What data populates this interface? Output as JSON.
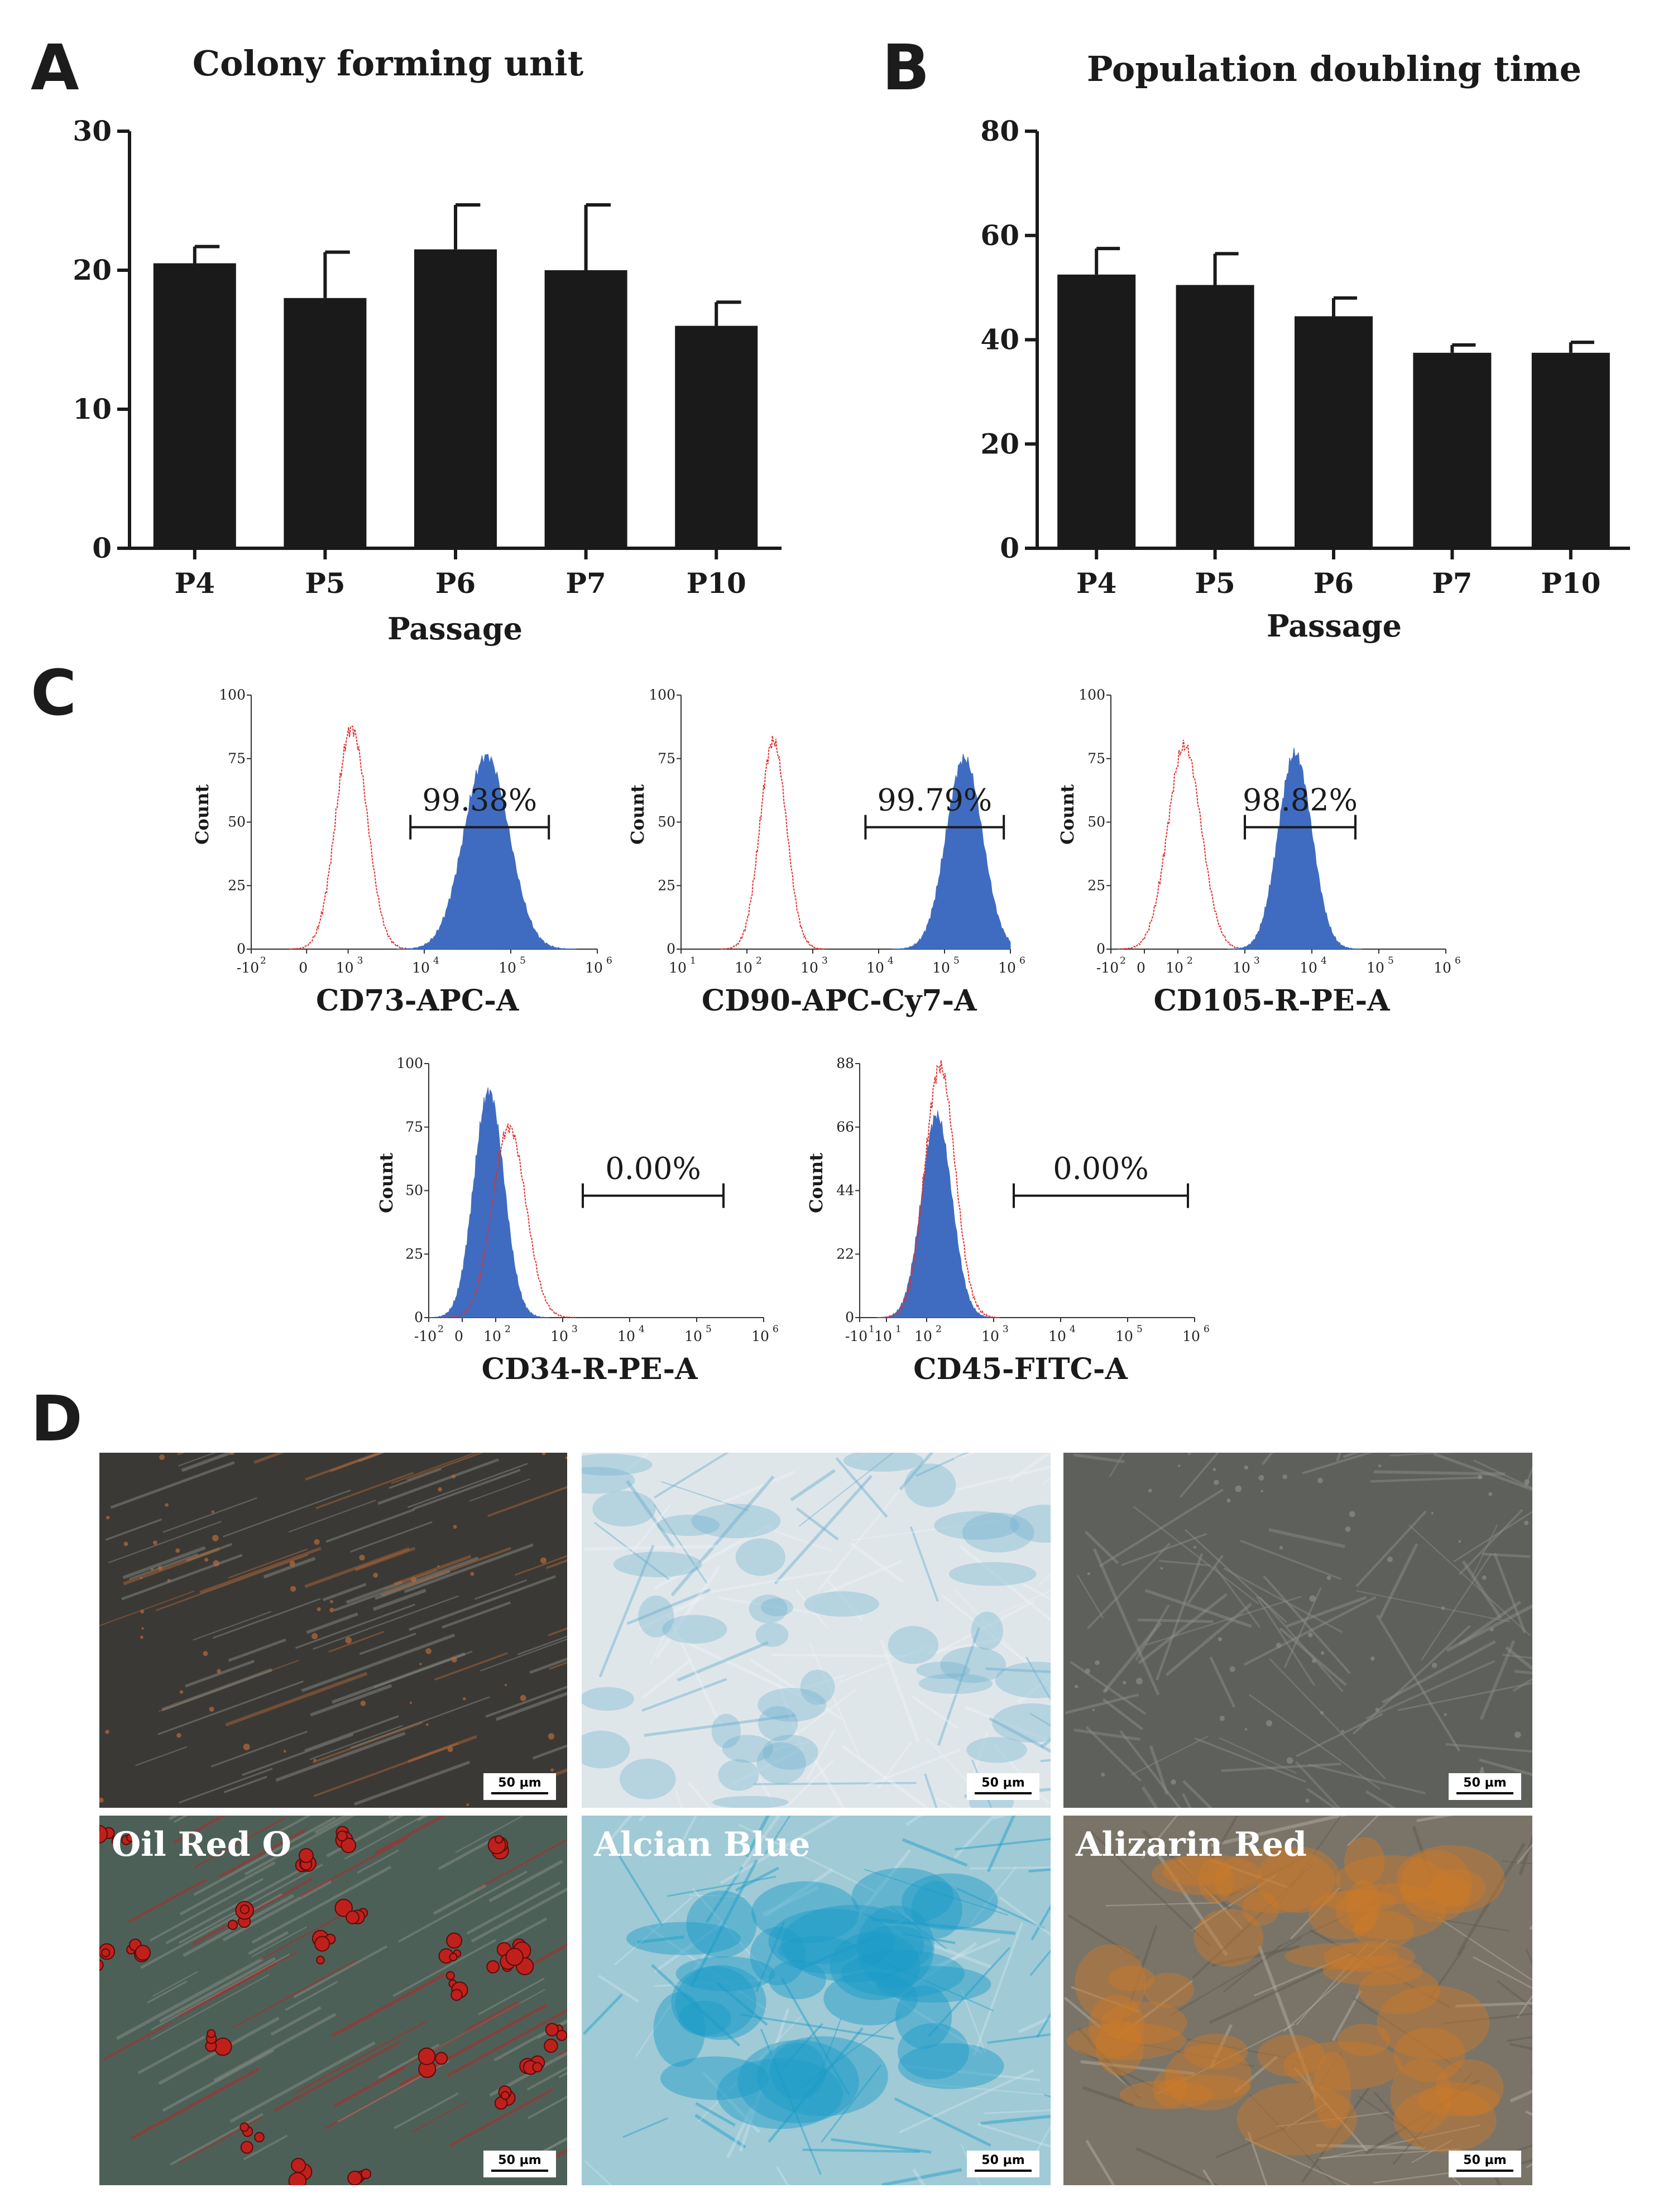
{
  "panel_labels": [
    "A",
    "B",
    "C",
    "D"
  ],
  "chart_data": [
    {
      "type": "bar",
      "title": "Colony forming unit",
      "xlabel": "Passage",
      "ylabel": "",
      "categories": [
        "P4",
        "P5",
        "P6",
        "P7",
        "P10"
      ],
      "values": [
        20.5,
        18.0,
        21.5,
        20.0,
        16.0
      ],
      "errors": [
        1.2,
        3.3,
        3.2,
        4.7,
        1.7
      ],
      "ylim": [
        0,
        30
      ],
      "yticks": [
        "0",
        "10",
        "20",
        "30"
      ],
      "bar_color": "#1a1a1a"
    },
    {
      "type": "bar",
      "title": "Population doubling time",
      "xlabel": "Passage",
      "ylabel": "",
      "categories": [
        "P4",
        "P5",
        "P6",
        "P7",
        "P10"
      ],
      "values": [
        52.5,
        50.5,
        44.5,
        37.5,
        37.5
      ],
      "errors": [
        5.0,
        6.0,
        3.5,
        1.5,
        2.0
      ],
      "ylim": [
        0,
        80
      ],
      "yticks": [
        "0",
        "20",
        "40",
        "60",
        "80"
      ],
      "bar_color": "#1a1a1a"
    }
  ],
  "flow_histograms": [
    {
      "marker": "CD73-APC-A",
      "percent": "99.38%",
      "ylabel": "Count",
      "yticks": [
        "0",
        "25",
        "50",
        "75",
        "100"
      ],
      "ymax": 100,
      "xticks": [
        [
          "-10",
          "2"
        ],
        [
          "0",
          ""
        ],
        [
          "10",
          "3"
        ],
        [
          "10",
          "4"
        ],
        [
          "10",
          "5"
        ],
        [
          "10",
          "6"
        ]
      ],
      "xtick_pos": [
        0.0,
        0.16,
        0.28,
        0.5,
        0.75,
        1.0
      ],
      "red_peak": {
        "center": 0.29,
        "width": 0.045,
        "height": 87
      },
      "blue_peak": {
        "center": 0.68,
        "width": 0.065,
        "height": 76
      },
      "gate": [
        0.46,
        0.86
      ],
      "blue_overlaps": false
    },
    {
      "marker": "CD90-APC-Cy7-A",
      "percent": "99.79%",
      "ylabel": "Count",
      "yticks": [
        "0",
        "25",
        "50",
        "75",
        "100"
      ],
      "ymax": 100,
      "xticks": [
        [
          "10",
          "1"
        ],
        [
          "10",
          "2"
        ],
        [
          "10",
          "3"
        ],
        [
          "10",
          "4"
        ],
        [
          "10",
          "5"
        ],
        [
          "10",
          "6"
        ]
      ],
      "xtick_pos": [
        0.0,
        0.2,
        0.4,
        0.6,
        0.8,
        1.0
      ],
      "red_peak": {
        "center": 0.28,
        "width": 0.04,
        "height": 82
      },
      "blue_peak": {
        "center": 0.86,
        "width": 0.055,
        "height": 75
      },
      "gate": [
        0.56,
        0.98
      ],
      "blue_overlaps": false
    },
    {
      "marker": "CD105-R-PE-A",
      "percent": "98.82%",
      "ylabel": "Count",
      "yticks": [
        "0",
        "25",
        "50",
        "75",
        "100"
      ],
      "ymax": 100,
      "xticks": [
        [
          "-10",
          "2"
        ],
        [
          "0",
          ""
        ],
        [
          "10",
          "2"
        ],
        [
          "10",
          "3"
        ],
        [
          "10",
          "4"
        ],
        [
          "10",
          "5"
        ],
        [
          "10",
          "6"
        ]
      ],
      "xtick_pos": [
        0.0,
        0.1,
        0.2,
        0.4,
        0.6,
        0.8,
        1.0
      ],
      "red_peak": {
        "center": 0.22,
        "width": 0.05,
        "height": 80
      },
      "blue_peak": {
        "center": 0.55,
        "width": 0.05,
        "height": 77
      },
      "gate": [
        0.4,
        0.73
      ],
      "blue_overlaps": false
    },
    {
      "marker": "CD34-R-PE-A",
      "percent": "0.00%",
      "ylabel": "Count",
      "yticks": [
        "0",
        "25",
        "50",
        "75",
        "100"
      ],
      "ymax": 100,
      "xticks": [
        [
          "-10",
          "2"
        ],
        [
          "0",
          ""
        ],
        [
          "10",
          "2"
        ],
        [
          "10",
          "3"
        ],
        [
          "10",
          "4"
        ],
        [
          "10",
          "5"
        ],
        [
          "10",
          "6"
        ]
      ],
      "xtick_pos": [
        0.0,
        0.1,
        0.2,
        0.4,
        0.6,
        0.8,
        1.0
      ],
      "red_peak": {
        "center": 0.24,
        "width": 0.05,
        "height": 75
      },
      "blue_peak": {
        "center": 0.18,
        "width": 0.045,
        "height": 89
      },
      "gate": [
        0.46,
        0.88
      ],
      "blue_overlaps": true
    },
    {
      "marker": "CD45-FITC-A",
      "percent": "0.00%",
      "ylabel": "Count",
      "yticks": [
        "0",
        "22",
        "44",
        "66",
        "88"
      ],
      "ymax": 88,
      "xticks": [
        [
          "-10",
          "1"
        ],
        [
          "10",
          "1"
        ],
        [
          "10",
          "2"
        ],
        [
          "10",
          "3"
        ],
        [
          "10",
          "4"
        ],
        [
          "10",
          "5"
        ],
        [
          "10",
          "6"
        ]
      ],
      "xtick_pos": [
        0.0,
        0.08,
        0.2,
        0.4,
        0.6,
        0.8,
        1.0
      ],
      "red_peak": {
        "center": 0.24,
        "width": 0.045,
        "height": 87
      },
      "blue_peak": {
        "center": 0.23,
        "width": 0.045,
        "height": 70
      },
      "gate": [
        0.46,
        0.98
      ],
      "blue_overlaps": true
    }
  ],
  "micrographs": [
    {
      "label": "",
      "scale_bar": "50 µm",
      "base": "#3a3935",
      "accent": "#b86a3a",
      "style": "dark"
    },
    {
      "label": "",
      "scale_bar": "50 µm",
      "base": "#dfe6ea",
      "accent": "#6bb0cf",
      "style": "light-blue"
    },
    {
      "label": "",
      "scale_bar": "50 µm",
      "base": "#5e605c",
      "accent": "#8d8d88",
      "style": "grey"
    },
    {
      "label": "Oil Red O",
      "scale_bar": "50 µm",
      "base": "#4d6058",
      "accent": "#c0201c",
      "style": "oil"
    },
    {
      "label": "Alcian Blue",
      "scale_bar": "50 µm",
      "base": "#9fcad6",
      "accent": "#1a9cc8",
      "style": "alcian"
    },
    {
      "label": "Alizarin Red",
      "scale_bar": "50 µm",
      "base": "#7a7468",
      "accent": "#cc7a28",
      "style": "alizarin"
    }
  ],
  "colors": {
    "bar": "#1a1a1a",
    "flow_red": "#e03030",
    "flow_blue": "#3f6cc0"
  }
}
